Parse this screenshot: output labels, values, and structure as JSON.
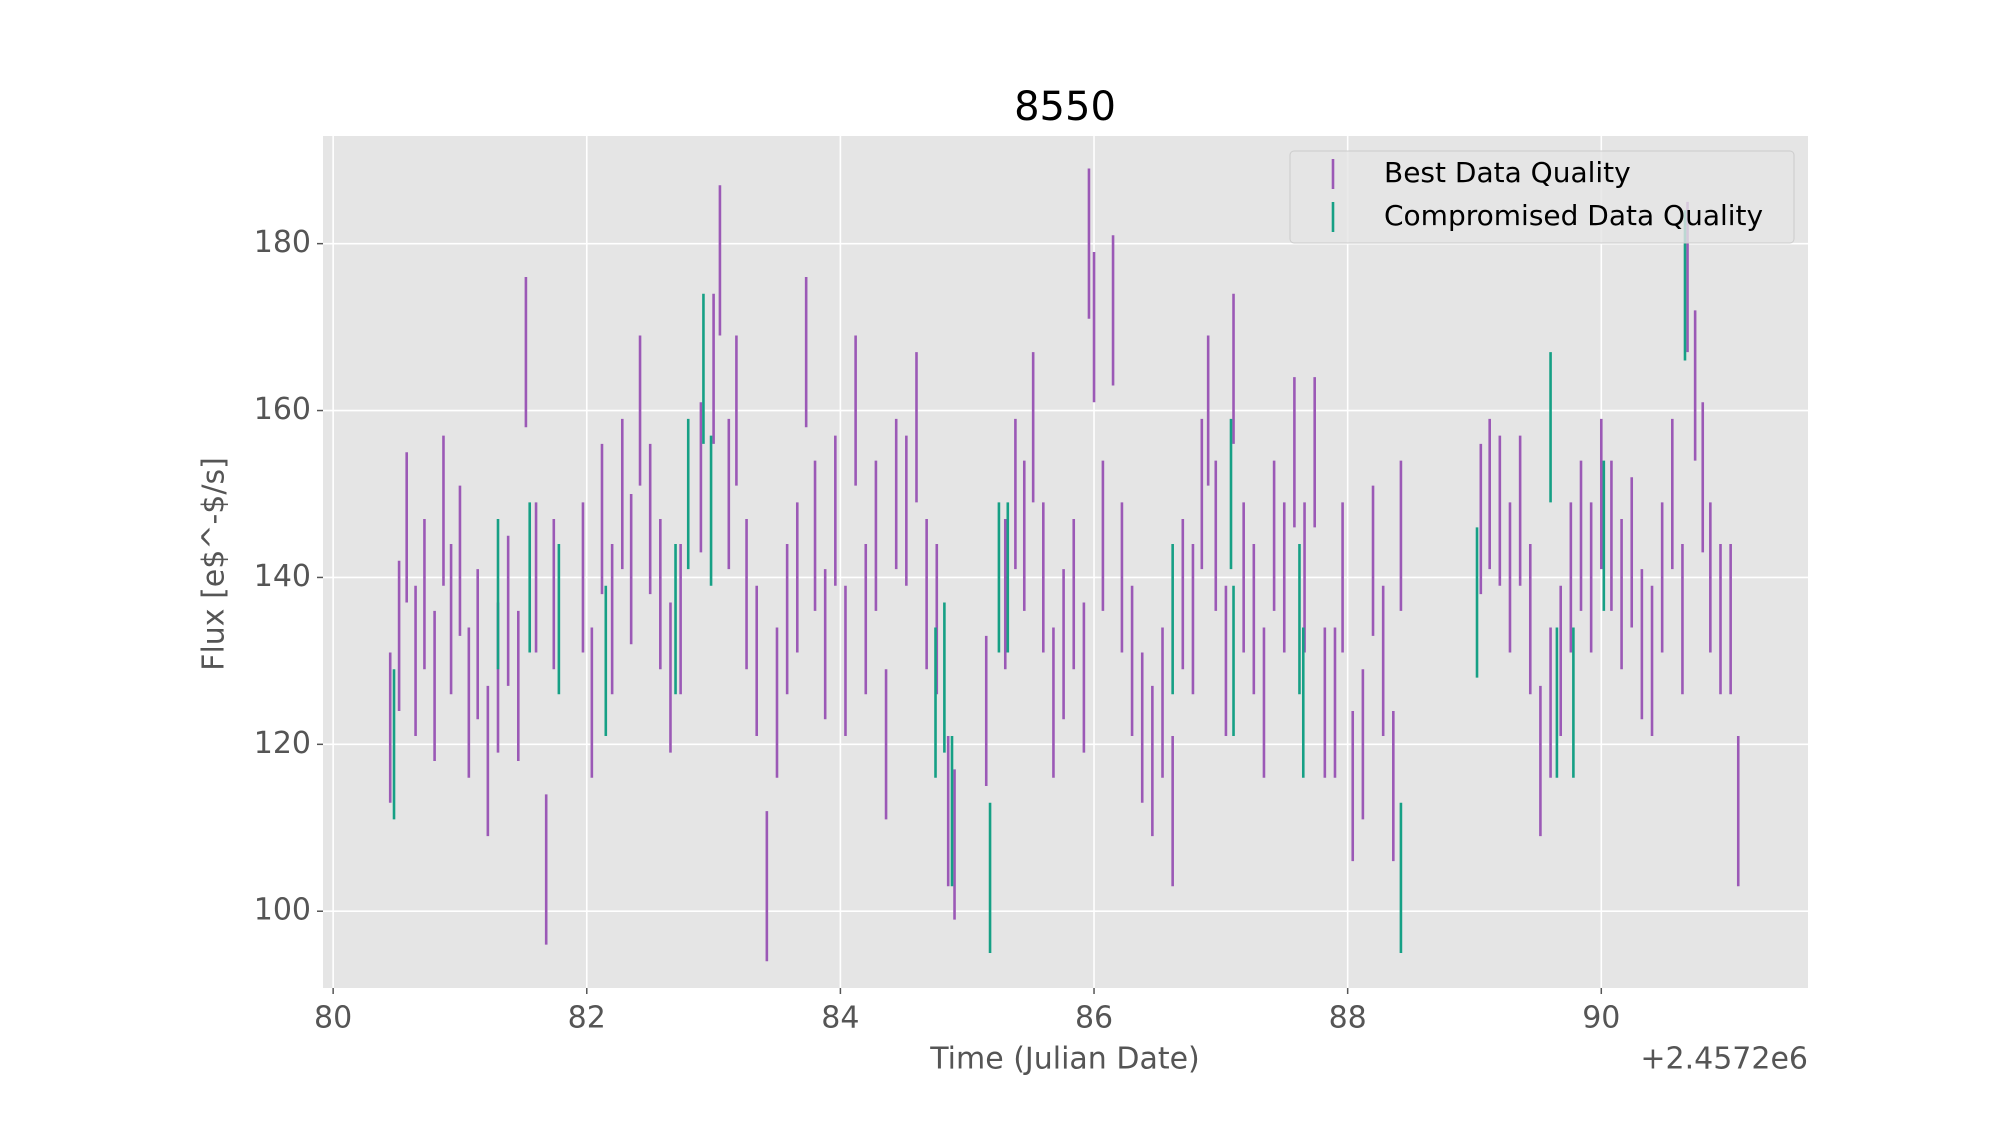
{
  "chart_data": {
    "type": "errorbar",
    "title": "8550",
    "x_label": "Time (Julian Date)",
    "y_label": "Flux [e$^-$/s]",
    "x_offset_text": "+2.4572e6",
    "xlim": [
      79.92,
      91.63
    ],
    "ylim": [
      90.8,
      192.9
    ],
    "xticks": [
      80,
      82,
      84,
      86,
      88,
      90
    ],
    "yticks": [
      100,
      120,
      140,
      160,
      180
    ],
    "grid": true,
    "legend": "upper right",
    "series": [
      {
        "name": "Best Data Quality",
        "color": "#9b59b6",
        "yerr": 9,
        "x": [
          80.45,
          80.52,
          80.58,
          80.65,
          80.72,
          80.8,
          80.87,
          80.93,
          81.0,
          81.07,
          81.14,
          81.22,
          81.3,
          81.38,
          81.46,
          81.52,
          81.6,
          81.68,
          81.74,
          81.97,
          82.04,
          82.12,
          82.2,
          82.28,
          82.35,
          82.42,
          82.5,
          82.58,
          82.66,
          82.74,
          82.9,
          83.0,
          83.05,
          83.12,
          83.18,
          83.26,
          83.34,
          83.42,
          83.5,
          83.58,
          83.66,
          83.73,
          83.8,
          83.88,
          83.96,
          84.04,
          84.12,
          84.2,
          84.28,
          84.36,
          84.44,
          84.52,
          84.6,
          84.68,
          84.76,
          84.85,
          84.9,
          85.15,
          85.3,
          85.38,
          85.45,
          85.52,
          85.6,
          85.68,
          85.76,
          85.84,
          85.92,
          85.96,
          86.0,
          86.07,
          86.15,
          86.22,
          86.3,
          86.38,
          86.46,
          86.54,
          86.62,
          86.7,
          86.78,
          86.85,
          86.9,
          86.96,
          87.04,
          87.1,
          87.18,
          87.26,
          87.34,
          87.42,
          87.5,
          87.58,
          87.66,
          87.74,
          87.82,
          87.9,
          87.96,
          88.04,
          88.12,
          88.2,
          88.28,
          88.36,
          88.42,
          89.05,
          89.12,
          89.2,
          89.28,
          89.36,
          89.44,
          89.52,
          89.6,
          89.68,
          89.76,
          89.84,
          89.92,
          90.0,
          90.08,
          90.16,
          90.24,
          90.32,
          90.4,
          90.48,
          90.56,
          90.64,
          90.68,
          90.74,
          90.8,
          90.86,
          90.94,
          91.02,
          91.08
        ],
        "values": [
          122,
          133,
          146,
          130,
          138,
          127,
          148,
          135,
          142,
          125,
          132,
          118,
          128,
          136,
          127,
          167,
          140,
          105,
          138,
          140,
          125,
          147,
          135,
          150,
          141,
          160,
          147,
          138,
          128,
          135,
          152,
          165,
          178,
          150,
          160,
          138,
          130,
          103,
          125,
          135,
          140,
          167,
          145,
          132,
          148,
          130,
          160,
          135,
          145,
          120,
          150,
          148,
          158,
          138,
          135,
          112,
          108,
          124,
          138,
          150,
          145,
          158,
          140,
          125,
          132,
          138,
          128,
          180,
          170,
          145,
          172,
          140,
          130,
          122,
          118,
          125,
          112,
          138,
          135,
          150,
          160,
          145,
          130,
          165,
          140,
          135,
          125,
          145,
          140,
          155,
          140,
          155,
          125,
          125,
          140,
          115,
          120,
          142,
          130,
          115,
          145,
          147,
          150,
          148,
          140,
          148,
          135,
          118,
          125,
          130,
          140,
          145,
          140,
          150,
          145,
          138,
          143,
          132,
          130,
          140,
          150,
          135,
          176,
          163,
          152,
          140,
          135,
          135,
          112
        ]
      },
      {
        "name": "Compromised Data Quality",
        "color": "#16a085",
        "yerr": 9,
        "x": [
          80.48,
          81.3,
          81.55,
          81.78,
          82.15,
          82.7,
          82.8,
          82.92,
          82.98,
          84.75,
          84.82,
          84.88,
          85.18,
          85.25,
          85.32,
          86.62,
          87.08,
          87.1,
          87.62,
          87.65,
          88.42,
          89.02,
          89.6,
          89.65,
          89.78,
          90.02,
          90.66
        ],
        "values": [
          120,
          138,
          140,
          135,
          130,
          135,
          150,
          165,
          148,
          125,
          128,
          112,
          104,
          140,
          140,
          135,
          150,
          130,
          135,
          125,
          104,
          137,
          158,
          125,
          125,
          145,
          175
        ]
      }
    ]
  }
}
